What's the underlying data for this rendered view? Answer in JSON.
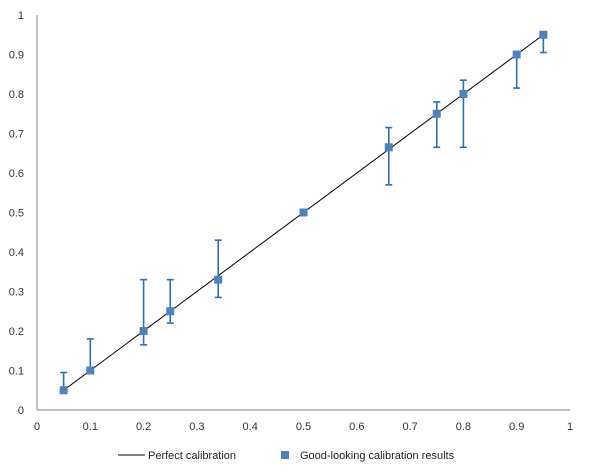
{
  "chart_data": {
    "type": "scatter",
    "xlim": [
      0,
      1
    ],
    "ylim": [
      0,
      1
    ],
    "x_ticks": [
      "0",
      "0.1",
      "0.2",
      "0.3",
      "0.4",
      "0.5",
      "0.6",
      "0.7",
      "0.8",
      "0.9",
      "1"
    ],
    "y_ticks": [
      "0",
      "0.1",
      "0.2",
      "0.3",
      "0.4",
      "0.5",
      "0.6",
      "0.7",
      "0.8",
      "0.9",
      "1"
    ],
    "grid": false,
    "legend_position": "bottom",
    "colors": {
      "reference_line": "#000000",
      "points": "#4F81BD",
      "error_bars": "#2E6FAE"
    },
    "series": [
      {
        "name": "Perfect calibration",
        "kind": "line",
        "x": [
          0.05,
          0.95
        ],
        "y": [
          0.05,
          0.95
        ]
      },
      {
        "name": "Good-looking calibration results",
        "kind": "scatter",
        "x": [
          0.05,
          0.1,
          0.2,
          0.25,
          0.34,
          0.5,
          0.66,
          0.75,
          0.8,
          0.9,
          0.95
        ],
        "y": [
          0.05,
          0.1,
          0.2,
          0.25,
          0.33,
          0.5,
          0.665,
          0.75,
          0.8,
          0.9,
          0.95
        ],
        "err_low": [
          0.05,
          0.1,
          0.165,
          0.22,
          0.285,
          0.5,
          0.57,
          0.665,
          0.665,
          0.815,
          0.905
        ],
        "err_high": [
          0.095,
          0.18,
          0.33,
          0.33,
          0.43,
          0.5,
          0.715,
          0.78,
          0.835,
          0.9,
          0.95
        ]
      }
    ]
  }
}
